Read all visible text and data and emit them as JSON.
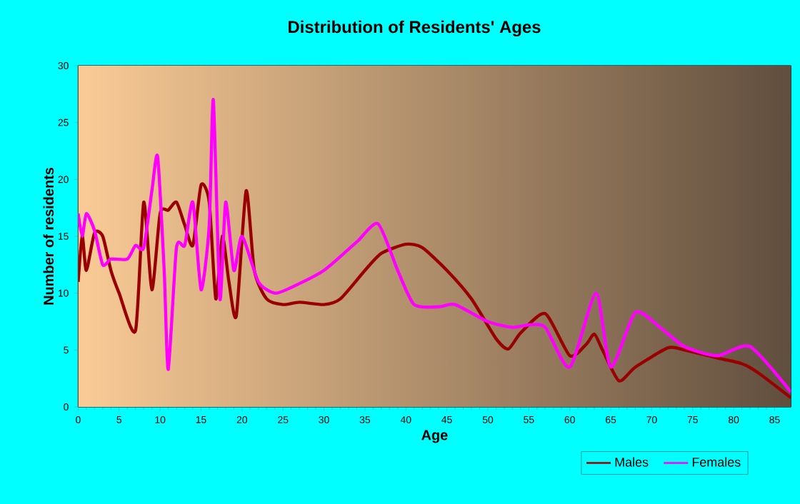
{
  "chart_data": {
    "type": "line",
    "title": "Distribution of Residents' Ages",
    "xlabel": "Age",
    "ylabel": "Number of residents",
    "xlim": [
      0,
      87
    ],
    "ylim": [
      0,
      30
    ],
    "xticks": [
      0,
      5,
      10,
      15,
      20,
      25,
      30,
      35,
      40,
      45,
      50,
      55,
      60,
      65,
      70,
      75,
      80,
      85
    ],
    "yticks": [
      0,
      5,
      10,
      15,
      20,
      25,
      30
    ],
    "grid": true,
    "legend": "bottom",
    "marker": "none",
    "line_style": "solid",
    "series": [
      {
        "name": "Males",
        "color": "#990000",
        "x": [
          0,
          0.5,
          1,
          2,
          3,
          4,
          5,
          7,
          8,
          9,
          10,
          11,
          12,
          13,
          14,
          15,
          16,
          16.8,
          17.6,
          18.4,
          19.3,
          20.5,
          21.5,
          23,
          25,
          27,
          30,
          32,
          35,
          37,
          40,
          42,
          45,
          48,
          51,
          52.5,
          54,
          57,
          60,
          62,
          63,
          64,
          66,
          68,
          72,
          74,
          78,
          81,
          83,
          87
        ],
        "values": [
          11,
          15,
          12,
          15.3,
          15,
          12,
          10,
          6.7,
          18,
          10.3,
          17,
          17.3,
          18,
          16,
          14.2,
          19.5,
          18,
          9.5,
          15,
          11,
          8,
          19,
          12,
          9.5,
          9,
          9.2,
          9,
          9.5,
          12,
          13.5,
          14.3,
          14,
          12,
          9.5,
          6,
          5.1,
          6.5,
          8.2,
          4.5,
          5.5,
          6.4,
          5,
          2.3,
          3.5,
          5.2,
          5,
          4.3,
          3.8,
          3,
          0.8
        ]
      },
      {
        "name": "Females",
        "color": "#ff00ff",
        "x": [
          0,
          0.5,
          1,
          2,
          3,
          4,
          6,
          7,
          8,
          9,
          9.7,
          10.5,
          11,
          12,
          13,
          14,
          15,
          16,
          16.5,
          17.3,
          18,
          19,
          20,
          22,
          24,
          26,
          30,
          34,
          36.6,
          39,
          41,
          44,
          46,
          50,
          53,
          55,
          57,
          60,
          63.2,
          65,
          68,
          71,
          74,
          78,
          82,
          87
        ],
        "values": [
          17,
          15,
          17,
          15.5,
          12.5,
          13,
          13,
          14.2,
          14,
          19,
          22,
          12,
          3.3,
          14,
          14.2,
          18,
          10.3,
          16,
          27,
          9.5,
          18,
          12,
          15,
          11,
          10,
          10.5,
          12,
          14.5,
          16.1,
          12,
          9,
          8.8,
          9,
          7.5,
          7,
          7.2,
          7,
          3.5,
          10,
          3.5,
          8.3,
          7,
          5.3,
          4.5,
          5.3,
          1.3
        ]
      }
    ]
  }
}
